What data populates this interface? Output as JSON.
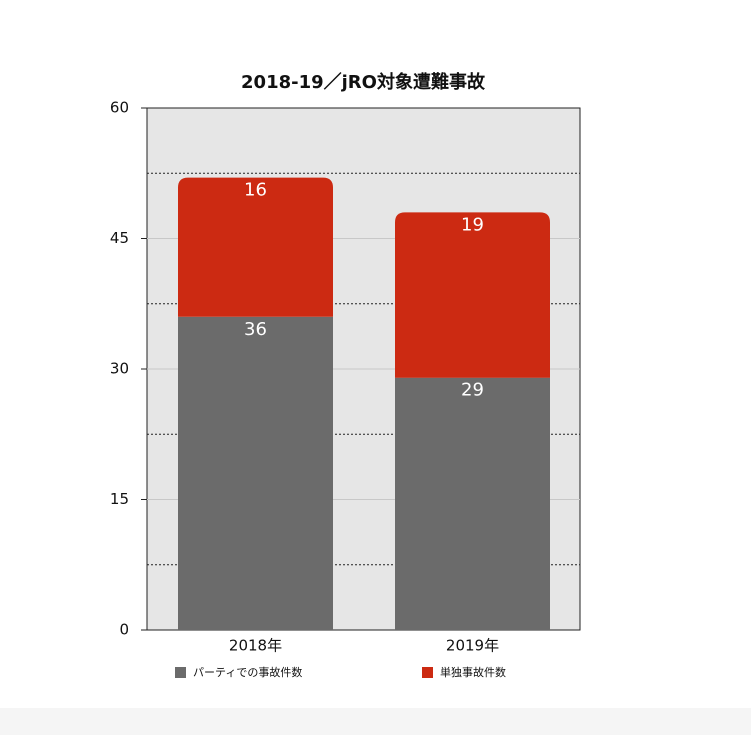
{
  "chart_data": {
    "type": "stacked_bar",
    "title": "2018-19／jRO対象遭難事故",
    "categories": [
      "2018年",
      "2019年"
    ],
    "series": [
      {
        "name": "パーティでの事故件数",
        "color": "#6b6b6b",
        "values": [
          36,
          29
        ]
      },
      {
        "name": "単独事故件数",
        "color": "#cc2a12",
        "values": [
          16,
          19
        ]
      }
    ],
    "ylim": [
      0,
      60
    ],
    "yticks": [
      0,
      15,
      30,
      45,
      60
    ],
    "minor_yticks": [
      7.5,
      22.5,
      37.5,
      52.5
    ],
    "grid": true
  }
}
